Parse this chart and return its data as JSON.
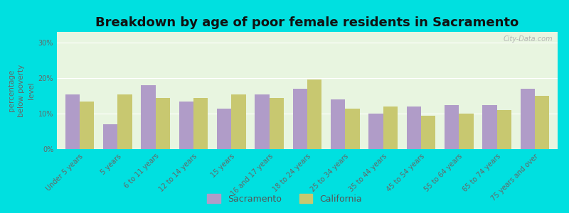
{
  "title": "Breakdown by age of poor female residents in Sacramento",
  "categories": [
    "Under 5 years",
    "5 years",
    "6 to 11 years",
    "12 to 14 years",
    "15 years",
    "16 and 17 years",
    "18 to 24 years",
    "25 to 34 years",
    "35 to 44 years",
    "45 to 54 years",
    "55 to 64 years",
    "65 to 74 years",
    "75 years and over"
  ],
  "sacramento_values": [
    15.5,
    7.0,
    18.0,
    13.5,
    11.5,
    15.5,
    17.0,
    14.0,
    10.0,
    12.0,
    12.5,
    12.5,
    17.0
  ],
  "california_values": [
    13.5,
    15.5,
    14.5,
    14.5,
    15.5,
    14.5,
    19.5,
    11.5,
    12.0,
    9.5,
    10.0,
    11.0,
    15.0
  ],
  "sacramento_color": "#b09cc8",
  "california_color": "#c8c870",
  "background_top": "#f0f8e8",
  "background_bottom": "#e8f5e0",
  "outer_background": "#00e0e0",
  "ylabel": "percentage\nbelow poverty\nlevel",
  "ylim": [
    0,
    33
  ],
  "yticks": [
    0,
    10,
    20,
    30
  ],
  "ytick_labels": [
    "0%",
    "10%",
    "20%",
    "30%"
  ],
  "legend_sacramento": "Sacramento",
  "legend_california": "California",
  "watermark": "City-Data.com",
  "bar_width": 0.38,
  "title_fontsize": 13,
  "tick_fontsize": 7.0,
  "ylabel_fontsize": 7.5
}
